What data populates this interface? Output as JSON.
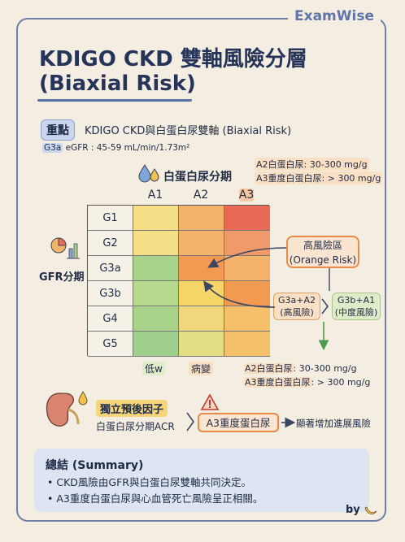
{
  "brand": "ExamWise",
  "title_line1": "KDIGO CKD 雙軸風險分層",
  "title_line2": "(Biaxial Risk)",
  "key_point": {
    "badge": "重點",
    "text": "KDIGO CKD與白蛋白尿雙軸 (Biaxial Risk)"
  },
  "g3a_def": {
    "tag": "G3a",
    "text": " eGFR : 45-59 mL/min/1.73m²"
  },
  "albuminuria_defs_top": [
    "A2白蛋白尿: 30-300 mg/g",
    "A3重度白蛋白尿: > 300 mg/g"
  ],
  "albuminuria_axis_title": "白蛋白尿分期",
  "columns": [
    "A1",
    "A2",
    "A3"
  ],
  "rows": [
    "G1",
    "G2",
    "G3a",
    "G3b",
    "G4",
    "G5"
  ],
  "cell_colors": [
    [
      "#f7df88",
      "#f5b26b",
      "#e86a56"
    ],
    [
      "#f7df88",
      "#f5b26b",
      "#f09a6a"
    ],
    [
      "#a9d38a",
      "#f39a52",
      "#f5b26b"
    ],
    [
      "#b7d98e",
      "#f5d567",
      "#f39a52"
    ],
    [
      "#a9d38a",
      "#f0d77e",
      "#f5c06a"
    ],
    [
      "#9fd08d",
      "#e3dd86",
      "#f5c06a"
    ]
  ],
  "gfr_axis_title": "GFR分期",
  "bottom_labels": {
    "low": "低w",
    "change": "病變"
  },
  "high_risk": {
    "line1": "高風險區",
    "line2": "(Orange Risk)"
  },
  "g3a_a2": {
    "line1": "G3a+A2",
    "line2": "(高風險)"
  },
  "g3b_a1": {
    "line1": "G3b+A1",
    "line2": "(中度風險)"
  },
  "albuminuria_defs_bottom": [
    {
      "tag": "A2白蛋白尿",
      "text": ": 30-300 mg/g"
    },
    {
      "tag": "A3重度白蛋白尿",
      "text": ": > 300 mg/g"
    }
  ],
  "independent": {
    "badge": "獨立預後因子",
    "sub": "白蛋白尿分期ACR"
  },
  "a3_box": "A3重度蛋白尿",
  "significance": "顯著增加進展風險",
  "summary": {
    "title": "總結 (Summary)",
    "items": [
      "CKD風險由GFR與白蛋白尿雙軸共同決定。",
      "A3重度白蛋白尿與心血管死亡風險呈正相關。"
    ]
  },
  "byline": "by"
}
